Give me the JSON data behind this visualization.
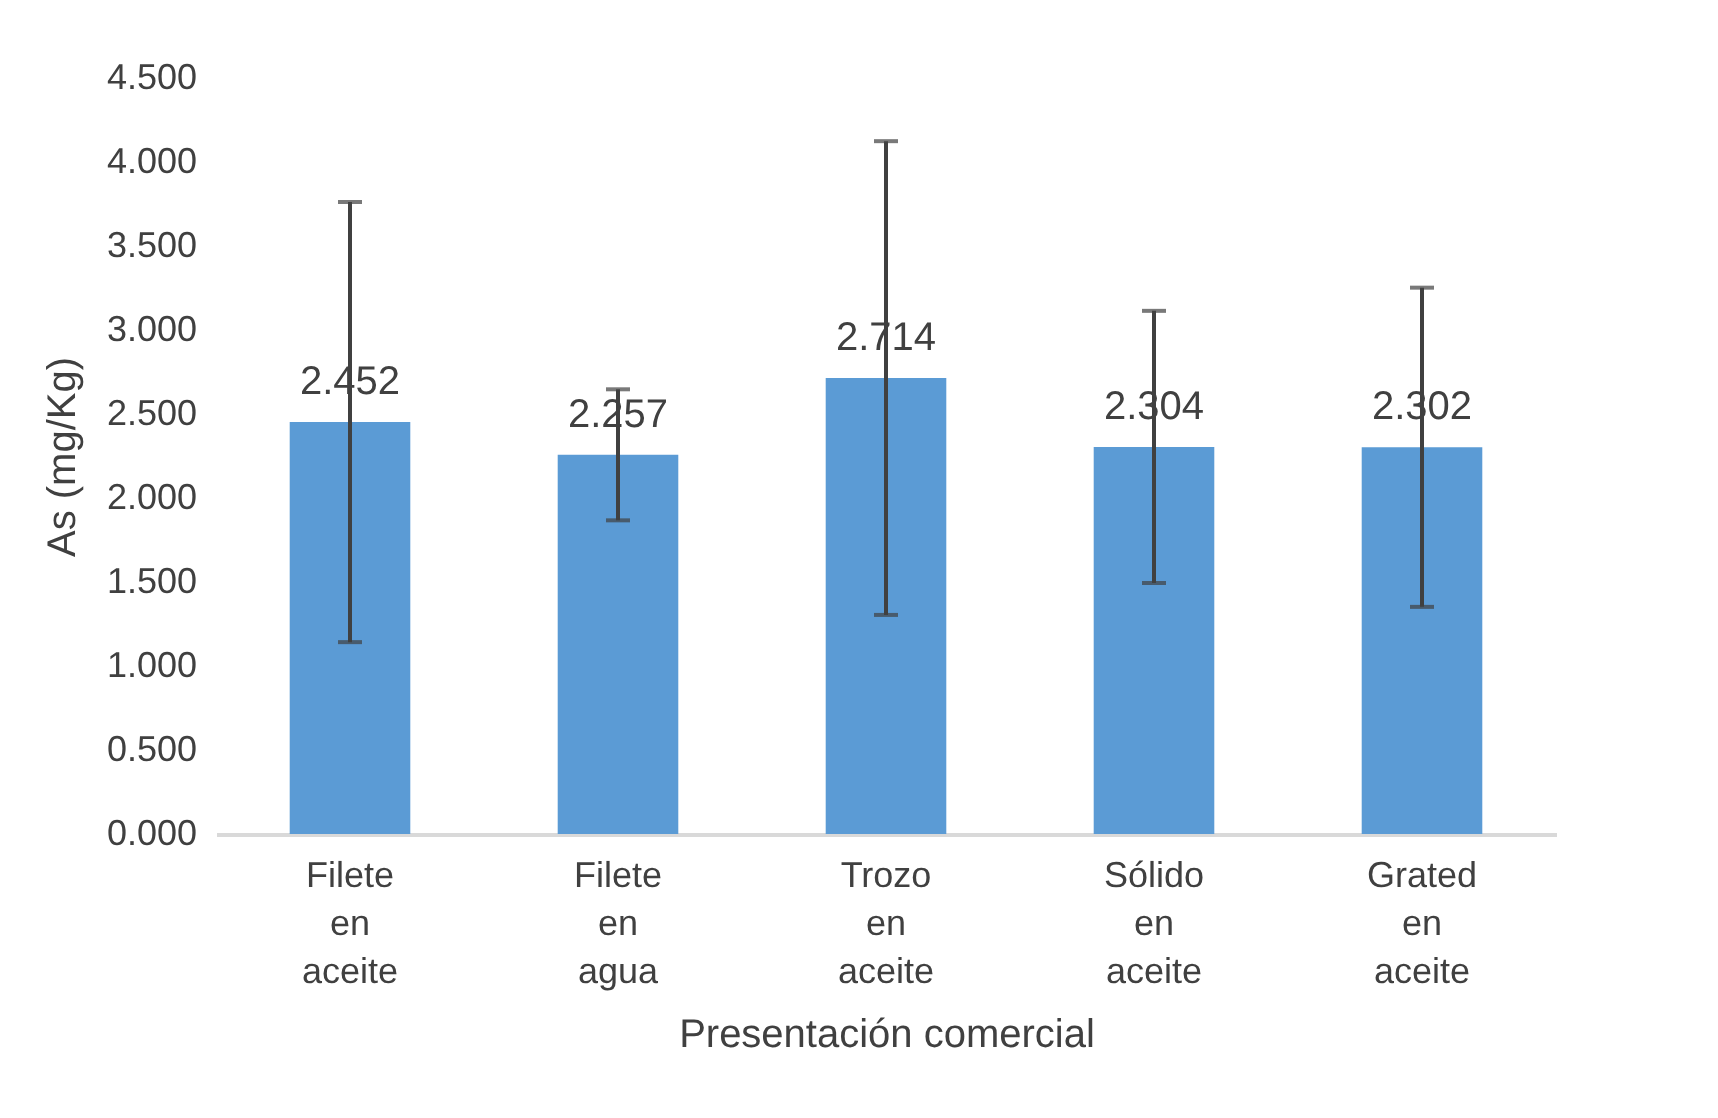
{
  "chart_data": {
    "type": "bar",
    "xlabel": "Presentación comercial",
    "ylabel": "As (mg/Kg)",
    "categories": [
      "Filete en aceite",
      "Filete en agua",
      "Trozo en aceite",
      "Sólido en aceite",
      "Grated en aceite"
    ],
    "values": [
      2.452,
      2.257,
      2.714,
      2.304,
      2.302
    ],
    "errors": [
      1.31,
      0.39,
      1.41,
      0.81,
      0.95
    ],
    "color": "#5b9bd5",
    "ylim": [
      0,
      4.5
    ],
    "yticks": [
      {
        "value": 0,
        "label": "0.000"
      },
      {
        "value": 0.5,
        "label": "0.500"
      },
      {
        "value": 1,
        "label": "1.000"
      },
      {
        "value": 1.5,
        "label": "1.500"
      },
      {
        "value": 2,
        "label": "2.000"
      },
      {
        "value": 2.5,
        "label": "2.500"
      },
      {
        "value": 3,
        "label": "3.000"
      },
      {
        "value": 3.5,
        "label": "3.500"
      },
      {
        "value": 4,
        "label": "4.000"
      },
      {
        "value": 4.5,
        "label": "4.500"
      }
    ],
    "data_labels": true,
    "grid": false
  }
}
